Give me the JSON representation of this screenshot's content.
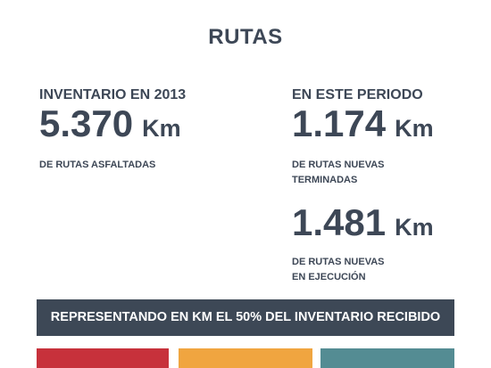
{
  "title": "RUTAS",
  "inventory": {
    "heading": "INVENTARIO EN 2013",
    "value": "5.370",
    "unit": "Km",
    "description": "DE RUTAS ASFALTADAS"
  },
  "period": {
    "heading": "EN ESTE PERIODO",
    "finished": {
      "value": "1.174",
      "unit": "Km",
      "description_line1": "DE RUTAS NUEVAS",
      "description_line2": "TERMINADAS"
    },
    "in_progress": {
      "value": "1.481",
      "unit": "Km",
      "description_line1": "DE RUTAS NUEVAS",
      "description_line2": "EN EJECUCIÓN"
    }
  },
  "banner": "REPRESENTANDO EN KM EL 50% DEL INVENTARIO RECIBIDO",
  "colors": {
    "text": "#3d4756",
    "banner_bg": "#3d4856",
    "red": "#c7313b",
    "orange": "#f0a540",
    "teal": "#548c93"
  }
}
